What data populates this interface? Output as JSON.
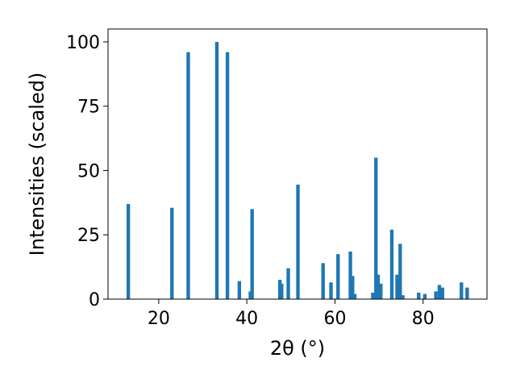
{
  "chart_data": {
    "type": "bar",
    "xlabel": "2θ (°)",
    "ylabel": "Intensities (scaled)",
    "xlim": [
      8.5,
      94.5
    ],
    "ylim": [
      0,
      105
    ],
    "xticks": [
      20,
      40,
      60,
      80
    ],
    "yticks": [
      0,
      25,
      50,
      75,
      100
    ],
    "bar_width_data": 0.8,
    "grid": false,
    "colors": {
      "bar": "#1f77b4",
      "axis": "#000000",
      "background": "#ffffff"
    },
    "x": [
      13.1,
      23.0,
      26.7,
      33.2,
      35.6,
      38.3,
      40.8,
      41.2,
      47.5,
      47.9,
      49.4,
      51.6,
      57.3,
      59.1,
      60.7,
      63.5,
      64.0,
      64.5,
      68.6,
      69.3,
      69.8,
      70.4,
      72.9,
      74.1,
      74.8,
      75.4,
      79.0,
      80.4,
      82.9,
      83.7,
      84.4,
      88.7,
      90.0
    ],
    "values": [
      37,
      35.5,
      96,
      100,
      96,
      7,
      3,
      35,
      7.5,
      6,
      12,
      44.5,
      14,
      6.5,
      17.5,
      18.5,
      9,
      2,
      2.5,
      55,
      9.5,
      6,
      27,
      9.5,
      21.5,
      1.5,
      2.5,
      2,
      3,
      5.5,
      4.5,
      6.5,
      4.5
    ]
  }
}
